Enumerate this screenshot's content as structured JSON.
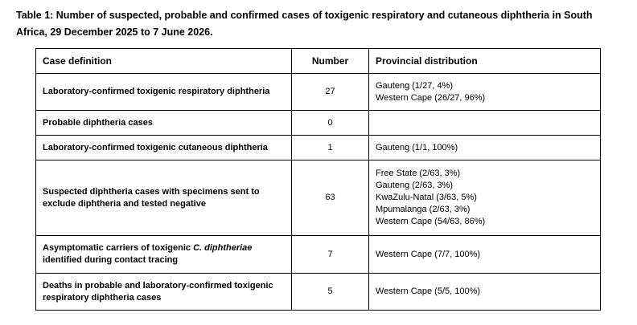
{
  "caption": "Table 1: Number of suspected, probable and confirmed cases of toxigenic respiratory and cutaneous diphtheria in South Africa, 29 December 2025 to 7 June 2026.",
  "headers": {
    "definition": "Case definition",
    "number": "Number",
    "provincial": "Provincial distribution"
  },
  "rows": [
    {
      "definition": "Laboratory-confirmed toxigenic respiratory diphtheria",
      "number": "27",
      "provincial": [
        "Gauteng (1/27, 4%)",
        "Western Cape (26/27, 96%)"
      ]
    },
    {
      "definition": "Probable diphtheria cases",
      "number": "0",
      "provincial": []
    },
    {
      "definition": "Laboratory-confirmed toxigenic cutaneous diphtheria",
      "number": "1",
      "provincial": [
        "Gauteng (1/1, 100%)"
      ]
    },
    {
      "definition": "Suspected diphtheria cases with specimens sent to exclude diphtheria and tested negative",
      "number": "63",
      "provincial": [
        "Free State (2/63, 3%)",
        "Gauteng (2/63, 3%)",
        "KwaZulu-Natal (3/63, 5%)",
        "Mpumalanga (2/63, 3%)",
        "Western Cape (54/63, 86%)"
      ]
    },
    {
      "definition_pre": "Asymptomatic carriers of toxigenic ",
      "definition_italic": "C. diphtheriae",
      "definition_post": " identified during contact tracing",
      "number": "7",
      "provincial": [
        "Western Cape (7/7, 100%)"
      ]
    },
    {
      "definition": "Deaths in probable and laboratory-confirmed toxigenic respiratory diphtheria cases",
      "number": "5",
      "provincial": [
        "Western Cape (5/5, 100%)"
      ]
    }
  ]
}
